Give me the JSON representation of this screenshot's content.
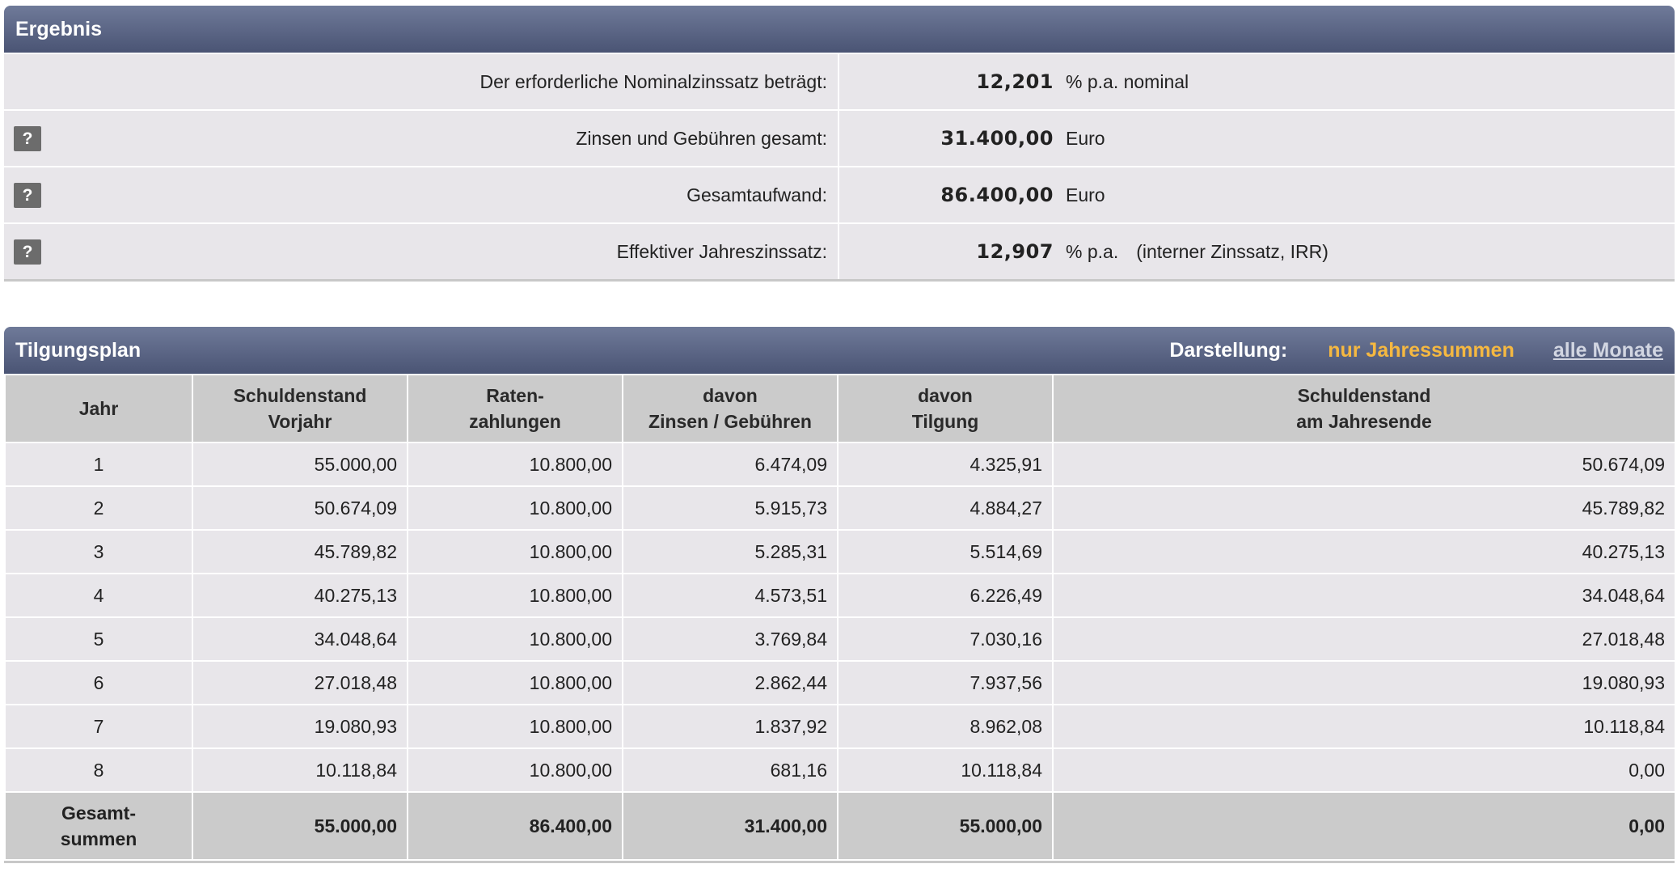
{
  "ergebnis": {
    "title": "Ergebnis",
    "rows": [
      {
        "label": "Der erforderliche Nominalzinssatz beträgt:",
        "value": "12,201",
        "unit": "% p.a. nominal",
        "note": "",
        "help": ""
      },
      {
        "label": "Zinsen und Gebühren gesamt:",
        "value": "31.400,00",
        "unit": "Euro",
        "note": "",
        "help": "?"
      },
      {
        "label": "Gesamtaufwand:",
        "value": "86.400,00",
        "unit": "Euro",
        "note": "",
        "help": "?"
      },
      {
        "label": "Effektiver Jahreszinssatz:",
        "value": "12,907",
        "unit": "% p.a.",
        "note": "(interner Zinssatz, IRR)",
        "help": "?"
      }
    ]
  },
  "tilgungsplan": {
    "title": "Tilgungsplan",
    "darstellung_label": "Darstellung:",
    "option_active": "nur Jahressummen",
    "option_link": "alle Monate",
    "headers": [
      [
        "Jahr"
      ],
      [
        "Schuldenstand",
        "Vorjahr"
      ],
      [
        "Raten-",
        "zahlungen"
      ],
      [
        "davon",
        "Zinsen / Gebühren"
      ],
      [
        "davon",
        "Tilgung"
      ],
      [
        "Schuldenstand",
        "am Jahresende"
      ]
    ],
    "rows": [
      [
        "1",
        "55.000,00",
        "10.800,00",
        "6.474,09",
        "4.325,91",
        "50.674,09"
      ],
      [
        "2",
        "50.674,09",
        "10.800,00",
        "5.915,73",
        "4.884,27",
        "45.789,82"
      ],
      [
        "3",
        "45.789,82",
        "10.800,00",
        "5.285,31",
        "5.514,69",
        "40.275,13"
      ],
      [
        "4",
        "40.275,13",
        "10.800,00",
        "4.573,51",
        "6.226,49",
        "34.048,64"
      ],
      [
        "5",
        "34.048,64",
        "10.800,00",
        "3.769,84",
        "7.030,16",
        "27.018,48"
      ],
      [
        "6",
        "27.018,48",
        "10.800,00",
        "2.862,44",
        "7.937,56",
        "19.080,93"
      ],
      [
        "7",
        "19.080,93",
        "10.800,00",
        "1.837,92",
        "8.962,08",
        "10.118,84"
      ],
      [
        "8",
        "10.118,84",
        "10.800,00",
        "681,16",
        "10.118,84",
        "0,00"
      ]
    ],
    "totals": {
      "label": [
        "Gesamt-",
        "summen"
      ],
      "values": [
        "55.000,00",
        "86.400,00",
        "31.400,00",
        "55.000,00",
        "0,00"
      ]
    }
  }
}
